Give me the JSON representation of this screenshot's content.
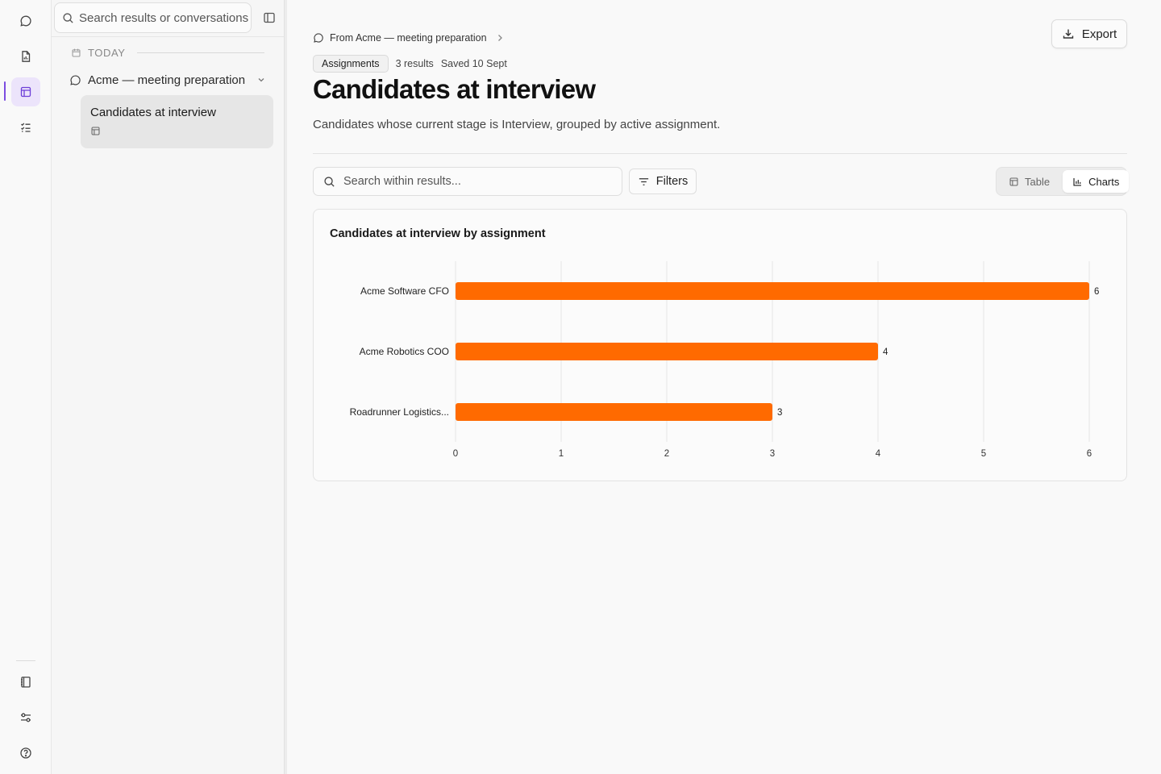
{
  "rail": {
    "items": [
      "chat-icon",
      "report-icon",
      "table-icon",
      "checklist-icon"
    ],
    "bottom": [
      "book-icon",
      "sliders-icon",
      "help-icon"
    ],
    "active": "table-icon"
  },
  "sidebar": {
    "search_placeholder": "Search results or conversations",
    "group_label": "TODAY",
    "conversation": {
      "label": "Acme — meeting preparation"
    },
    "result_item": {
      "title": "Candidates at interview"
    }
  },
  "main": {
    "export_label": "Export",
    "breadcrumb": "From Acme — meeting preparation",
    "tag": "Assignments",
    "result_count": "3 results",
    "saved": "Saved 10 Sept",
    "title": "Candidates at interview",
    "description": "Candidates whose current stage is Interview, grouped by active assignment.",
    "search_placeholder": "Search within results...",
    "filters_label": "Filters",
    "view_toggle": {
      "table": "Table",
      "charts": "Charts",
      "selected": "Charts"
    }
  },
  "colors": {
    "accent": "#7c4ce0",
    "bar": "#ff6a00"
  },
  "chart_data": {
    "type": "bar",
    "orientation": "horizontal",
    "title": "Candidates at interview by assignment",
    "categories": [
      "Acme Software CFO",
      "Acme Robotics COO",
      "Roadrunner Logistics..."
    ],
    "values": [
      6,
      4,
      3
    ],
    "xlim": [
      0,
      6
    ],
    "xticks": [
      0,
      1,
      2,
      3,
      4,
      5,
      6
    ],
    "grid": "vertical",
    "data_labels": true
  }
}
